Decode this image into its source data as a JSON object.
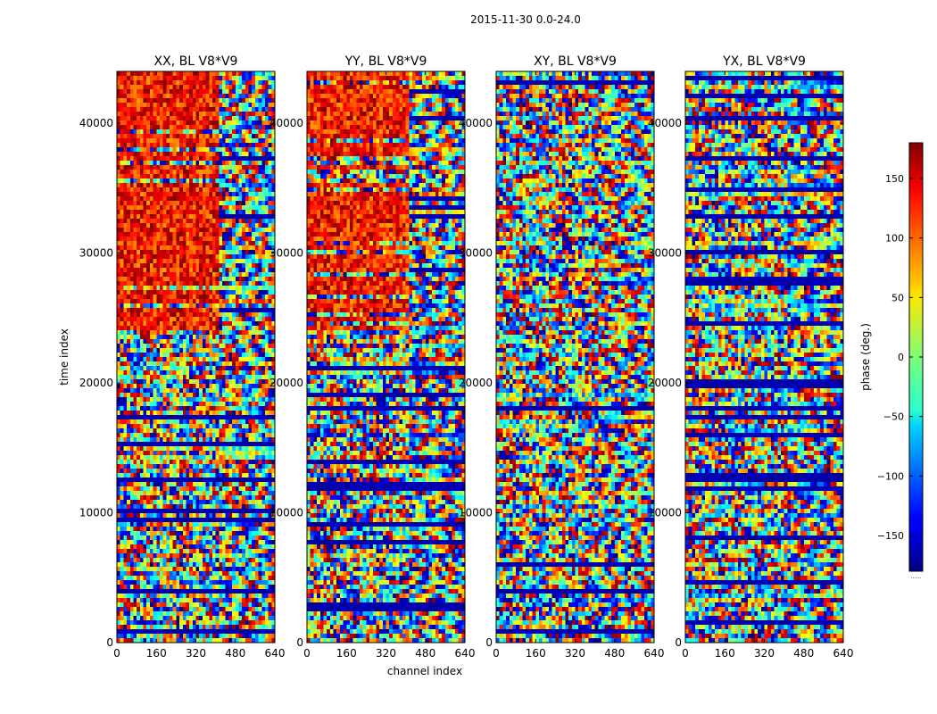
{
  "figure": {
    "suptitle": "2015-11-30 0.0-24.0"
  },
  "chart_data": {
    "type": "heatmap",
    "colormap": "jet",
    "xlabel": "channel index",
    "ylabel": "time index",
    "xlim": [
      0,
      640
    ],
    "ylim": [
      0,
      44000
    ],
    "x_ticks": [
      0,
      160,
      320,
      480,
      640
    ],
    "y_ticks": [
      0,
      10000,
      20000,
      30000,
      40000
    ],
    "panels": [
      {
        "title": "XX, BL V8*V9"
      },
      {
        "title": "YY, BL V8*V9"
      },
      {
        "title": "XY, BL V8*V9"
      },
      {
        "title": "YX, BL V8*V9"
      }
    ],
    "colorbar": {
      "label": "phase (deg.)",
      "range": [
        -180,
        180
      ],
      "ticks": [
        -150,
        -100,
        -50,
        0,
        50,
        100,
        150
      ],
      "tick_labels": [
        "−150",
        "−100",
        "−50",
        "0",
        "50",
        "100",
        "150"
      ],
      "footer": "......"
    }
  }
}
